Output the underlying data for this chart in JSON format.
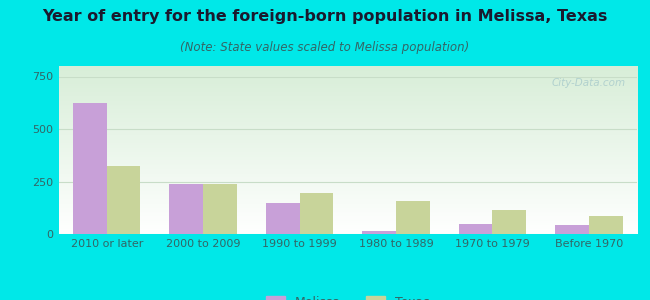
{
  "title": "Year of entry for the foreign-born population in Melissa, Texas",
  "subtitle": "(Note: State values scaled to Melissa population)",
  "categories": [
    "2010 or later",
    "2000 to 2009",
    "1990 to 1999",
    "1980 to 1989",
    "1970 to 1979",
    "Before 1970"
  ],
  "melissa_values": [
    625,
    237,
    150,
    15,
    47,
    42
  ],
  "texas_values": [
    325,
    237,
    193,
    155,
    115,
    85
  ],
  "melissa_color": "#c8a0d8",
  "texas_color": "#c8d49a",
  "background_color": "#00e8e8",
  "grad_color_bottom": "#ffffff",
  "grad_color_top": "#d8eed8",
  "ylim": [
    0,
    800
  ],
  "yticks": [
    0,
    250,
    500,
    750
  ],
  "bar_width": 0.35,
  "legend_labels": [
    "Melissa",
    "Texas"
  ],
  "watermark": "City-Data.com",
  "title_fontsize": 11.5,
  "subtitle_fontsize": 8.5,
  "tick_fontsize": 8,
  "legend_fontsize": 9,
  "title_color": "#1a1a2e",
  "subtitle_color": "#336666",
  "tick_color": "#336666",
  "grid_color": "#c8ddc8",
  "watermark_color": "#aacccc"
}
